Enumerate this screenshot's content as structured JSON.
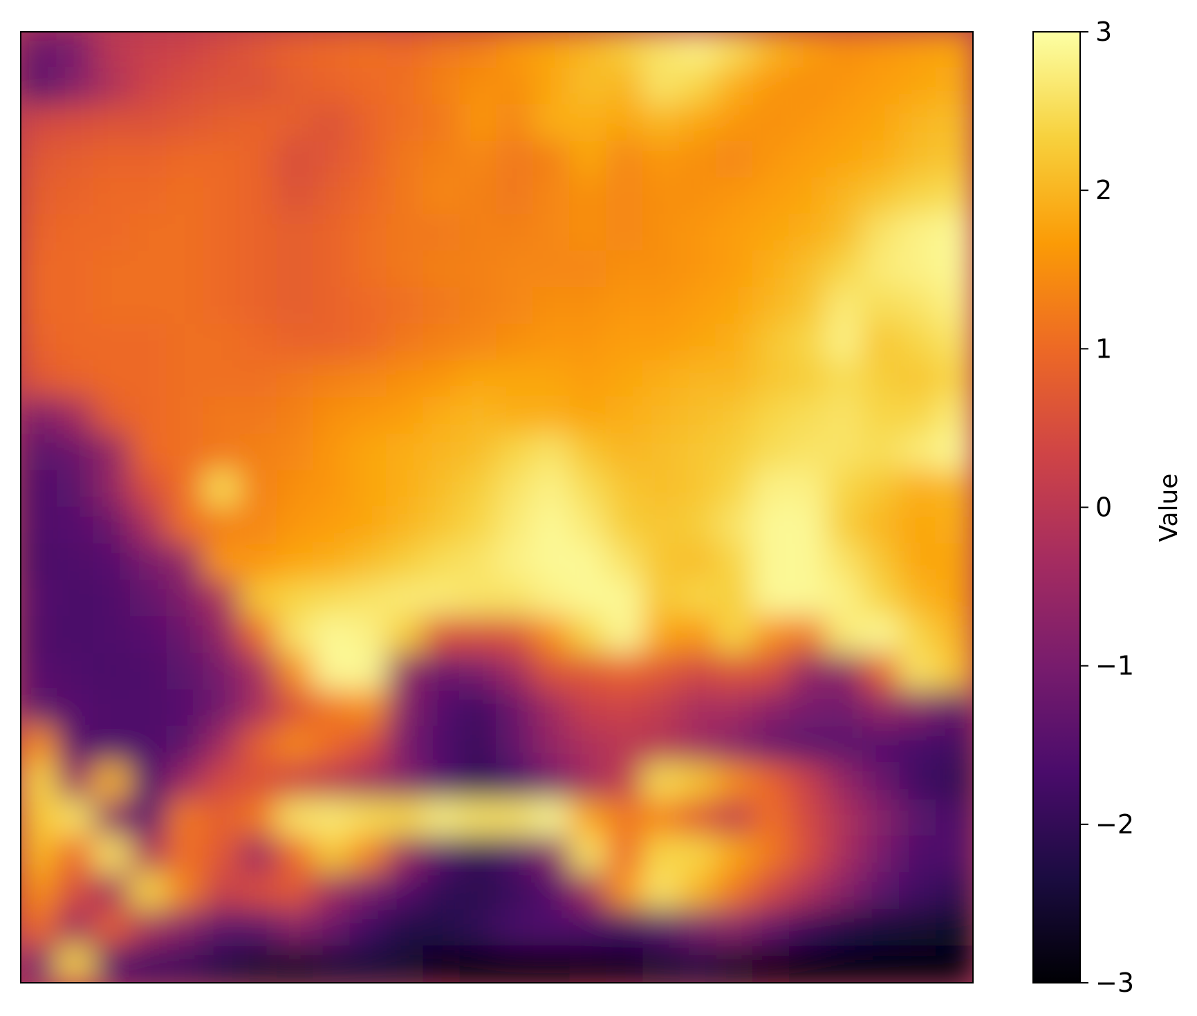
{
  "chart_data": {
    "type": "heatmap",
    "title": "",
    "xlabel": "",
    "ylabel": "",
    "colormap": "inferno",
    "colormap_stops": [
      "#000004",
      "#1b0c41",
      "#4a0c6b",
      "#781c6d",
      "#a52c60",
      "#cf4446",
      "#ed6925",
      "#fb9b06",
      "#f7d13d",
      "#fcffa4"
    ],
    "value_range": [
      -3,
      3
    ],
    "axes_ticks_visible": false,
    "colorbar": {
      "label": "Value",
      "ticks": [
        3,
        2,
        1,
        0,
        -1,
        -2,
        -3
      ],
      "tick_labels": [
        "3",
        "2",
        "1",
        "0",
        "−1",
        "−2",
        "−3"
      ],
      "position": "right"
    },
    "grid_shape": [
      26,
      26
    ],
    "grid_values": [
      [
        -1.2,
        -1.0,
        0.0,
        0.2,
        0.3,
        0.5,
        0.7,
        0.9,
        1.0,
        1.1,
        1.0,
        1.2,
        1.3,
        1.6,
        1.8,
        2.0,
        2.3,
        2.6,
        2.8,
        2.5,
        2.0,
        1.7,
        1.5,
        1.6,
        1.7,
        1.8
      ],
      [
        -1.4,
        -0.8,
        -0.2,
        0.3,
        0.5,
        0.6,
        0.6,
        0.8,
        0.9,
        1.0,
        1.1,
        1.3,
        1.5,
        1.5,
        1.8,
        2.1,
        2.0,
        2.6,
        2.4,
        1.9,
        1.6,
        1.5,
        1.6,
        1.7,
        1.8,
        1.9
      ],
      [
        0.4,
        0.5,
        0.6,
        0.6,
        0.7,
        0.8,
        0.9,
        0.8,
        0.6,
        0.9,
        1.1,
        1.2,
        1.6,
        1.4,
        1.9,
        1.9,
        1.8,
        2.0,
        1.8,
        1.6,
        1.5,
        1.6,
        1.7,
        1.8,
        2.0,
        2.1
      ],
      [
        0.7,
        0.8,
        0.9,
        0.9,
        1.0,
        1.0,
        0.9,
        0.5,
        0.7,
        0.9,
        1.2,
        1.3,
        1.4,
        1.2,
        1.3,
        1.8,
        1.4,
        1.6,
        1.5,
        1.4,
        1.6,
        1.7,
        1.8,
        1.9,
        2.1,
        2.2
      ],
      [
        0.8,
        0.9,
        1.0,
        1.0,
        1.1,
        1.0,
        0.9,
        0.6,
        0.8,
        1.0,
        1.2,
        1.4,
        1.3,
        1.2,
        1.4,
        1.5,
        1.4,
        1.5,
        1.5,
        1.6,
        1.7,
        1.8,
        2.0,
        2.2,
        2.4,
        2.5
      ],
      [
        0.9,
        1.0,
        1.0,
        1.1,
        1.1,
        1.0,
        0.9,
        0.8,
        0.9,
        1.1,
        1.2,
        1.2,
        1.3,
        1.3,
        1.4,
        1.5,
        1.4,
        1.5,
        1.6,
        1.7,
        1.8,
        1.9,
        2.1,
        2.6,
        2.8,
        2.9
      ],
      [
        1.0,
        1.0,
        1.1,
        1.1,
        1.1,
        1.0,
        0.9,
        0.8,
        0.9,
        1.1,
        1.2,
        1.3,
        1.3,
        1.4,
        1.4,
        1.4,
        1.5,
        1.5,
        1.6,
        1.7,
        1.9,
        2.1,
        2.4,
        2.7,
        2.8,
        2.9
      ],
      [
        1.0,
        1.0,
        1.1,
        1.1,
        1.1,
        1.0,
        0.9,
        0.8,
        0.9,
        1.0,
        1.1,
        1.2,
        1.3,
        1.4,
        1.5,
        1.5,
        1.6,
        1.6,
        1.7,
        1.8,
        2.0,
        2.2,
        2.7,
        2.5,
        2.6,
        2.8
      ],
      [
        0.9,
        1.0,
        1.0,
        1.0,
        1.1,
        1.1,
        1.0,
        0.9,
        0.9,
        1.0,
        1.2,
        1.3,
        1.4,
        1.5,
        1.6,
        1.6,
        1.7,
        1.7,
        1.8,
        1.9,
        2.2,
        2.4,
        2.8,
        2.2,
        2.4,
        2.6
      ],
      [
        0.7,
        0.9,
        1.0,
        1.0,
        1.1,
        1.1,
        1.1,
        1.2,
        1.3,
        1.4,
        1.5,
        1.6,
        1.8,
        1.8,
        1.8,
        1.7,
        1.8,
        1.9,
        2.0,
        2.0,
        2.2,
        2.3,
        2.5,
        2.3,
        2.2,
        2.4
      ],
      [
        -0.9,
        -0.4,
        0.8,
        1.0,
        1.1,
        1.2,
        1.2,
        1.3,
        1.5,
        1.6,
        1.7,
        1.9,
        2.0,
        1.9,
        1.9,
        1.8,
        1.9,
        2.0,
        2.1,
        2.2,
        2.4,
        2.5,
        2.6,
        2.4,
        2.4,
        2.7
      ],
      [
        -1.4,
        -1.2,
        -0.6,
        1.0,
        1.1,
        1.2,
        1.3,
        1.4,
        1.6,
        1.8,
        1.9,
        2.0,
        2.1,
        2.4,
        2.6,
        2.2,
        2.0,
        2.1,
        2.2,
        2.3,
        2.5,
        2.6,
        2.6,
        2.5,
        2.7,
        2.9
      ],
      [
        -1.6,
        -1.4,
        -0.6,
        0.5,
        1.1,
        2.5,
        1.3,
        1.5,
        1.6,
        1.8,
        1.9,
        2.1,
        2.3,
        2.6,
        2.8,
        2.5,
        2.2,
        2.1,
        2.2,
        2.4,
        2.8,
        2.8,
        2.4,
        2.2,
        1.9,
        2.0
      ],
      [
        -1.6,
        -1.5,
        -1.2,
        -0.2,
        1.1,
        1.3,
        1.4,
        1.6,
        1.7,
        1.8,
        2.0,
        2.2,
        2.4,
        2.7,
        2.9,
        2.7,
        2.3,
        2.2,
        2.3,
        2.6,
        2.9,
        2.9,
        2.3,
        2.0,
        1.8,
        1.9
      ],
      [
        -1.7,
        -1.6,
        -1.5,
        -1.0,
        -0.6,
        1.6,
        1.6,
        1.8,
        1.9,
        2.1,
        2.3,
        2.5,
        2.6,
        2.8,
        2.9,
        2.9,
        2.6,
        2.2,
        2.1,
        2.4,
        2.9,
        2.9,
        2.6,
        2.2,
        1.8,
        1.8
      ],
      [
        -1.5,
        -1.7,
        -1.6,
        -1.3,
        -0.9,
        -0.2,
        2.2,
        2.4,
        2.5,
        2.6,
        2.7,
        2.7,
        2.6,
        2.6,
        2.8,
        2.9,
        2.9,
        2.2,
        2.4,
        2.3,
        2.9,
        2.9,
        2.8,
        2.4,
        2.0,
        1.8
      ],
      [
        -1.6,
        -1.7,
        -1.6,
        -1.5,
        -1.2,
        -0.6,
        1.0,
        2.6,
        2.9,
        2.8,
        2.3,
        0.6,
        0.5,
        0.6,
        1.5,
        2.4,
        2.9,
        1.8,
        1.6,
        2.4,
        1.5,
        1.2,
        2.7,
        2.9,
        2.4,
        2.0
      ],
      [
        -1.5,
        -1.6,
        -1.7,
        -1.6,
        -1.4,
        -1.0,
        -0.3,
        1.5,
        2.9,
        2.9,
        -0.6,
        -1.2,
        -1.0,
        -0.4,
        0.6,
        0.7,
        0.9,
        0.7,
        0.4,
        0.6,
        0.5,
        -0.6,
        -0.7,
        0.8,
        2.6,
        2.2
      ],
      [
        -1.3,
        -1.5,
        -1.6,
        -1.6,
        -1.5,
        -1.1,
        -0.3,
        0.6,
        1.2,
        1.5,
        -0.8,
        -1.5,
        -1.8,
        -1.2,
        -0.4,
        0.2,
        0.3,
        0.1,
        -0.3,
        -0.3,
        -0.7,
        -1.0,
        -1.1,
        -0.6,
        -0.8,
        -1.3
      ],
      [
        1.5,
        -1.5,
        -1.6,
        -1.6,
        -1.4,
        -0.4,
        0.8,
        1.4,
        1.0,
        0.5,
        -1.0,
        -1.6,
        -1.9,
        -1.3,
        -0.6,
        -0.2,
        0.0,
        -0.1,
        -0.4,
        -0.8,
        -1.2,
        -1.4,
        -1.4,
        -1.5,
        -1.7,
        -1.8
      ],
      [
        2.4,
        -0.5,
        2.0,
        -1.6,
        -0.5,
        0.4,
        0.6,
        0.3,
        0.0,
        -0.4,
        -0.8,
        -1.5,
        -2.0,
        -1.7,
        -1.0,
        -0.4,
        0.1,
        2.5,
        2.2,
        1.5,
        0.9,
        0.2,
        -0.6,
        -1.2,
        -1.8,
        -2.0
      ],
      [
        2.2,
        2.6,
        -0.7,
        -1.4,
        1.2,
        0.8,
        1.2,
        2.6,
        2.7,
        2.5,
        2.4,
        2.8,
        2.6,
        2.6,
        2.9,
        1.8,
        1.2,
        1.4,
        0.7,
        0.1,
        1.1,
        0.4,
        -0.2,
        -0.8,
        -1.4,
        -1.7
      ],
      [
        2.0,
        1.0,
        2.6,
        -0.2,
        1.1,
        0.7,
        -0.5,
        1.0,
        2.2,
        1.4,
        -0.5,
        -1.5,
        -2.0,
        -1.6,
        -0.8,
        2.6,
        1.0,
        2.4,
        2.4,
        1.8,
        1.2,
        0.5,
        -0.3,
        -1.0,
        -1.6,
        -1.6
      ],
      [
        1.5,
        0.5,
        -0.4,
        2.4,
        1.3,
        0.2,
        0.5,
        0.7,
        -0.4,
        -1.0,
        -1.5,
        -2.0,
        -2.1,
        -1.9,
        -1.5,
        -0.4,
        1.6,
        2.6,
        2.0,
        1.2,
        0.4,
        -0.2,
        -0.8,
        -1.4,
        -1.8,
        -2.0
      ],
      [
        1.0,
        -0.5,
        0.8,
        -0.3,
        -0.8,
        -1.4,
        -1.4,
        -0.8,
        -1.2,
        -1.8,
        -2.2,
        -2.2,
        -2.0,
        -1.7,
        -1.6,
        -1.7,
        -1.8,
        -1.5,
        -1.0,
        -0.8,
        -1.3,
        -1.9,
        -2.2,
        -2.4,
        -2.5,
        -2.6
      ],
      [
        -1.0,
        2.4,
        -1.5,
        -1.8,
        -1.9,
        -2.2,
        -2.5,
        -2.6,
        -2.4,
        -2.4,
        -2.5,
        -2.8,
        -2.9,
        -2.9,
        -2.9,
        -2.8,
        -2.7,
        -2.5,
        -2.3,
        -2.6,
        -2.8,
        -2.9,
        -2.9,
        -2.9,
        -2.9,
        -2.9
      ]
    ]
  }
}
